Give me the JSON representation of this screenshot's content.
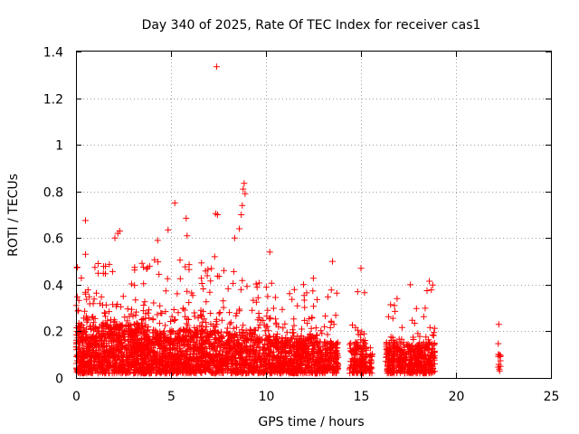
{
  "chart_data": {
    "type": "scatter",
    "title": "Day 340 of 2025, Rate Of TEC Index for receiver cas1",
    "xlabel": "GPS time / hours",
    "ylabel": "ROTI / TECUs",
    "xlim": [
      0,
      25
    ],
    "ylim": [
      0,
      1.4
    ],
    "xticks": [
      0,
      5,
      10,
      15,
      20,
      25
    ],
    "yticks": [
      0,
      0.2,
      0.4,
      0.6,
      0.8,
      1,
      1.2,
      1.4
    ],
    "xtick_labels": [
      "0",
      "5",
      "10",
      "15",
      "20",
      "25"
    ],
    "ytick_labels": [
      "0",
      "0.2",
      "0.4",
      "0.6",
      "0.8",
      "1",
      "1.2",
      "1.4"
    ],
    "grid": true,
    "marker": "+",
    "marker_color": "#ff0000",
    "outliers": [
      {
        "x": 7.4,
        "y": 1.335
      },
      {
        "x": 8.85,
        "y": 0.835
      },
      {
        "x": 8.8,
        "y": 0.81
      },
      {
        "x": 8.9,
        "y": 0.79
      },
      {
        "x": 8.75,
        "y": 0.74
      },
      {
        "x": 5.2,
        "y": 0.75
      },
      {
        "x": 7.35,
        "y": 0.705
      },
      {
        "x": 7.45,
        "y": 0.7
      },
      {
        "x": 8.7,
        "y": 0.7
      },
      {
        "x": 0.5,
        "y": 0.675
      },
      {
        "x": 5.8,
        "y": 0.685
      },
      {
        "x": 8.6,
        "y": 0.64
      },
      {
        "x": 4.85,
        "y": 0.635
      },
      {
        "x": 2.3,
        "y": 0.63
      },
      {
        "x": 2.2,
        "y": 0.62
      },
      {
        "x": 5.85,
        "y": 0.61
      },
      {
        "x": 2.05,
        "y": 0.6
      },
      {
        "x": 4.3,
        "y": 0.59
      },
      {
        "x": 8.35,
        "y": 0.6
      },
      {
        "x": 10.2,
        "y": 0.54
      },
      {
        "x": 0.5,
        "y": 0.53
      },
      {
        "x": 7.3,
        "y": 0.52
      },
      {
        "x": 13.5,
        "y": 0.5
      },
      {
        "x": 15.0,
        "y": 0.47
      },
      {
        "x": 18.6,
        "y": 0.415
      },
      {
        "x": 17.6,
        "y": 0.4
      },
      {
        "x": 16.9,
        "y": 0.34
      },
      {
        "x": 22.25,
        "y": 0.23
      }
    ],
    "clusters": [
      {
        "x0": 0.0,
        "x1": 3.5,
        "base": 0.34,
        "top": 0.5,
        "n": 900
      },
      {
        "x0": 3.5,
        "x1": 6.2,
        "base": 0.3,
        "top": 0.52,
        "n": 650
      },
      {
        "x0": 6.2,
        "x1": 9.5,
        "base": 0.3,
        "top": 0.5,
        "n": 700
      },
      {
        "x0": 9.5,
        "x1": 12.5,
        "base": 0.26,
        "top": 0.44,
        "n": 620
      },
      {
        "x0": 12.5,
        "x1": 13.8,
        "base": 0.22,
        "top": 0.38,
        "n": 240
      },
      {
        "x0": 14.4,
        "x1": 14.7,
        "base": 0.2,
        "top": 0.24,
        "n": 40
      },
      {
        "x0": 14.7,
        "x1": 15.3,
        "base": 0.22,
        "top": 0.45,
        "n": 120
      },
      {
        "x0": 15.4,
        "x1": 15.6,
        "base": 0.14,
        "top": 0.16,
        "n": 25
      },
      {
        "x0": 16.3,
        "x1": 17.3,
        "base": 0.22,
        "top": 0.33,
        "n": 180
      },
      {
        "x0": 17.3,
        "x1": 18.2,
        "base": 0.2,
        "top": 0.38,
        "n": 160
      },
      {
        "x0": 18.2,
        "x1": 18.9,
        "base": 0.22,
        "top": 0.4,
        "n": 130
      },
      {
        "x0": 22.2,
        "x1": 22.35,
        "base": 0.15,
        "top": 0.2,
        "n": 12
      }
    ]
  }
}
